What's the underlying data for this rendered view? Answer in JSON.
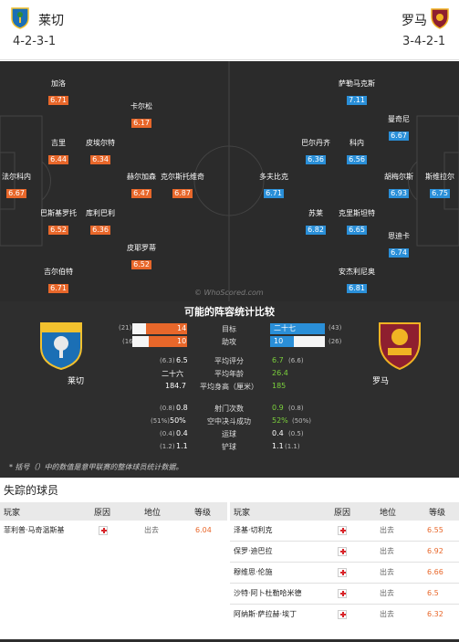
{
  "header": {
    "home": {
      "name": "莱切",
      "formation": "4-2-3-1"
    },
    "away": {
      "name": "罗马",
      "formation": "3-4-2-1"
    }
  },
  "pitch": {
    "watermark": "© WhoScored.com",
    "home_players": [
      {
        "name": "加洛",
        "rating": "6.71"
      },
      {
        "name": "卡尔松",
        "rating": "6.17"
      },
      {
        "name": "吉里",
        "rating": "6.44"
      },
      {
        "name": "皮埃尔特",
        "rating": "6.34"
      },
      {
        "name": "法尔科内",
        "rating": "6.67"
      },
      {
        "name": "赫尔加森",
        "rating": "6.47"
      },
      {
        "name": "克尔斯托维奇",
        "rating": "6.87"
      },
      {
        "name": "巴斯基罗托",
        "rating": "6.52"
      },
      {
        "name": "库利巴利",
        "rating": "6.36"
      },
      {
        "name": "皮耶罗蒂",
        "rating": "6.52"
      },
      {
        "name": "吉尔伯特",
        "rating": "6.71"
      }
    ],
    "away_players": [
      {
        "name": "萨勒马克斯",
        "rating": "7.11"
      },
      {
        "name": "曼奇尼",
        "rating": "6.67"
      },
      {
        "name": "巴尔丹齐",
        "rating": "6.36"
      },
      {
        "name": "科内",
        "rating": "6.56"
      },
      {
        "name": "多夫比克",
        "rating": "6.71"
      },
      {
        "name": "胡梅尔斯",
        "rating": "6.93"
      },
      {
        "name": "斯维拉尔",
        "rating": "6.75"
      },
      {
        "name": "苏莱",
        "rating": "6.82"
      },
      {
        "name": "克里斯坦特",
        "rating": "6.65"
      },
      {
        "name": "恩迪卡",
        "rating": "6.74"
      },
      {
        "name": "安杰利尼奥",
        "rating": "6.81"
      }
    ]
  },
  "stats": {
    "title": "可能的阵容统计比较",
    "home_label": "莱切",
    "away_label": "罗马",
    "rows": [
      {
        "label": "目标",
        "home": "14",
        "home_paren": "(21)",
        "away": "二十七",
        "away_paren": "(43)",
        "bar": true
      },
      {
        "label": "助攻",
        "home": "10",
        "home_paren": "(16)",
        "away": "10",
        "away_paren": "(26)",
        "bar": true
      },
      {
        "label": "平均评分",
        "home": "6.5",
        "home_paren": "(6.3)",
        "away": "6.7",
        "away_paren": "(6.6)"
      },
      {
        "label": "平均年龄",
        "home": "二十六",
        "home_paren": "",
        "away": "26.4",
        "away_paren": ""
      },
      {
        "label": "平均身高（厘米）",
        "home": "184.7",
        "home_paren": "",
        "away": "185",
        "away_paren": ""
      },
      {
        "label": "射门次数",
        "home": "0.8",
        "home_paren": "(0.8)",
        "away": "0.9",
        "away_paren": "(0.8)"
      },
      {
        "label": "空中决斗成功",
        "home": "50%",
        "home_paren": "(51%)",
        "away": "52%",
        "away_paren": "(50%)"
      },
      {
        "label": "运球",
        "home": "0.4",
        "home_paren": "(0.4)",
        "away": "0.4",
        "away_paren": "(0.5)"
      },
      {
        "label": "铲球",
        "home": "1.1",
        "home_paren": "(1.2)",
        "away": "1.1",
        "away_paren": "(1.1)"
      }
    ],
    "footnote": "* 括号（）中的数值是意甲联赛的整体球员统计数据。"
  },
  "missing": {
    "title": "失踪的球员",
    "headers": {
      "player": "玩家",
      "reason": "原因",
      "status": "地位",
      "rating": "等级"
    },
    "home": [
      {
        "name": "菲利普·马奇温斯基",
        "status": "出去",
        "rating": "6.04"
      }
    ],
    "away": [
      {
        "name": "泽基·切利克",
        "status": "出去",
        "rating": "6.55"
      },
      {
        "name": "保罗·迪巴拉",
        "status": "出去",
        "rating": "6.92"
      },
      {
        "name": "穆维思·伦施",
        "status": "出去",
        "rating": "6.66"
      },
      {
        "name": "沙特·阿卜杜勒哈米德",
        "status": "出去",
        "rating": "6.5"
      },
      {
        "name": "阿纳斯·萨拉赫·埃丁",
        "status": "出去",
        "rating": "6.32"
      }
    ]
  },
  "colors": {
    "home_accent": "#e8672a",
    "away_accent": "#2a8fd8",
    "panel": "#2e2e2e",
    "pitch": "#2b2b2b"
  }
}
